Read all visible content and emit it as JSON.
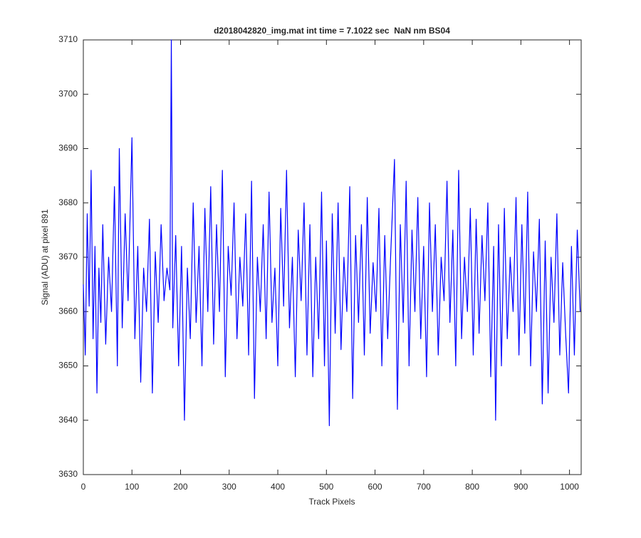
{
  "chart_data": {
    "type": "line",
    "title": "d2018042820_img.mat int time = 7.1022 sec  NaN nm BS04",
    "x_label": "Track Pixels",
    "y_label": "Signal (ADU) at pixel 891",
    "xlim": [
      0,
      1024
    ],
    "ylim": [
      3630,
      3710
    ],
    "xticks": [
      0,
      100,
      200,
      300,
      400,
      500,
      600,
      700,
      800,
      900,
      1000
    ],
    "yticks": [
      3630,
      3640,
      3650,
      3660,
      3670,
      3680,
      3690,
      3700,
      3710
    ],
    "x": [
      0,
      4,
      8,
      12,
      16,
      20,
      24,
      28,
      32,
      36,
      40,
      46,
      52,
      58,
      64,
      70,
      74,
      80,
      86,
      92,
      100,
      106,
      112,
      118,
      124,
      130,
      136,
      142,
      148,
      154,
      160,
      166,
      172,
      178,
      181,
      184,
      190,
      196,
      202,
      208,
      214,
      220,
      226,
      232,
      238,
      244,
      250,
      256,
      262,
      268,
      274,
      280,
      286,
      292,
      298,
      304,
      310,
      316,
      322,
      328,
      334,
      340,
      346,
      352,
      358,
      364,
      370,
      376,
      382,
      388,
      394,
      400,
      406,
      412,
      418,
      424,
      430,
      436,
      442,
      448,
      454,
      460,
      466,
      472,
      478,
      484,
      490,
      496,
      500,
      506,
      512,
      518,
      524,
      530,
      536,
      542,
      548,
      554,
      560,
      566,
      572,
      578,
      584,
      590,
      596,
      602,
      608,
      614,
      620,
      626,
      632,
      640,
      646,
      652,
      658,
      664,
      670,
      676,
      682,
      688,
      694,
      700,
      706,
      712,
      718,
      724,
      730,
      736,
      742,
      748,
      754,
      760,
      766,
      772,
      778,
      784,
      790,
      796,
      802,
      808,
      814,
      820,
      826,
      832,
      838,
      844,
      848,
      854,
      860,
      866,
      872,
      878,
      884,
      890,
      896,
      902,
      908,
      914,
      920,
      926,
      932,
      938,
      944,
      950,
      956,
      962,
      968,
      974,
      980,
      986,
      992,
      998,
      1004,
      1010,
      1016,
      1022
    ],
    "series": [
      {
        "color": "#0000ff",
        "values": [
          3665,
          3652,
          3678,
          3661,
          3686,
          3655,
          3672,
          3645,
          3668,
          3658,
          3676,
          3654,
          3670,
          3660,
          3683,
          3650,
          3690,
          3657,
          3678,
          3662,
          3692,
          3655,
          3672,
          3647,
          3668,
          3660,
          3677,
          3645,
          3671,
          3658,
          3676,
          3662,
          3668,
          3664,
          3710,
          3657,
          3674,
          3650,
          3672,
          3640,
          3668,
          3655,
          3680,
          3658,
          3672,
          3650,
          3679,
          3660,
          3683,
          3654,
          3676,
          3660,
          3686,
          3648,
          3672,
          3663,
          3680,
          3655,
          3670,
          3661,
          3678,
          3652,
          3684,
          3644,
          3670,
          3660,
          3676,
          3655,
          3682,
          3658,
          3668,
          3650,
          3679,
          3661,
          3686,
          3657,
          3670,
          3648,
          3675,
          3662,
          3680,
          3652,
          3676,
          3648,
          3670,
          3655,
          3682,
          3650,
          3673,
          3639,
          3678,
          3656,
          3680,
          3653,
          3670,
          3660,
          3683,
          3644,
          3674,
          3658,
          3676,
          3652,
          3681,
          3656,
          3669,
          3660,
          3679,
          3650,
          3674,
          3655,
          3670,
          3688,
          3642,
          3676,
          3658,
          3684,
          3650,
          3675,
          3660,
          3681,
          3655,
          3672,
          3648,
          3680,
          3660,
          3676,
          3652,
          3670,
          3662,
          3684,
          3658,
          3675,
          3650,
          3686,
          3655,
          3670,
          3660,
          3679,
          3652,
          3677,
          3656,
          3674,
          3662,
          3680,
          3648,
          3672,
          3640,
          3676,
          3650,
          3679,
          3655,
          3670,
          3660,
          3681,
          3652,
          3676,
          3656,
          3682,
          3650,
          3671,
          3660,
          3677,
          3643,
          3673,
          3645,
          3670,
          3658,
          3678,
          3652,
          3669,
          3656,
          3645,
          3672,
          3652,
          3675,
          3660
        ]
      }
    ]
  }
}
